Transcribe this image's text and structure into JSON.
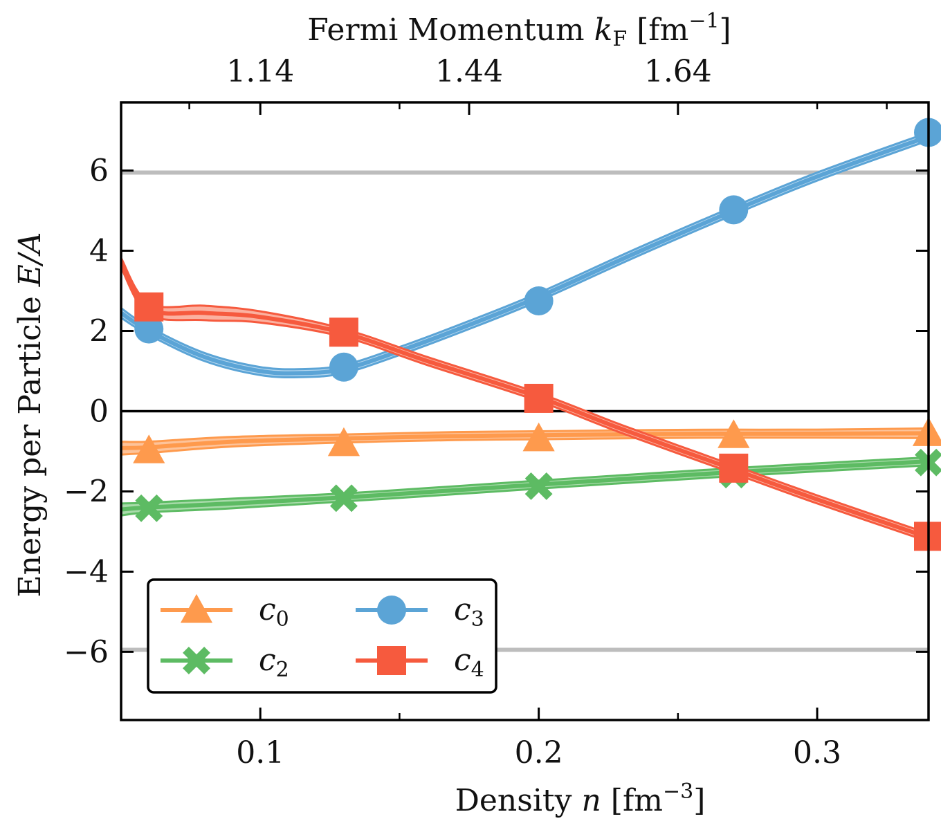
{
  "chart_data": {
    "type": "line",
    "xlabel": "Density n [fm⁻³]",
    "ylabel": "Energy per Particle E/A",
    "top_xlabel": "Fermi Momentum k_F [fm⁻¹]",
    "xlim": [
      0.05,
      0.34
    ],
    "ylim": [
      -7.7,
      7.7
    ],
    "x_ticks": [
      0.1,
      0.2,
      0.3
    ],
    "x_tick_labels": [
      "0.1",
      "0.2",
      "0.3"
    ],
    "y_ticks": [
      -6,
      -4,
      -2,
      0,
      2,
      4,
      6
    ],
    "y_tick_labels": [
      "−6",
      "−4",
      "−2",
      "0",
      "2",
      "4",
      "6"
    ],
    "top_ticks_density": [
      0.1,
      0.175,
      0.25
    ],
    "top_tick_labels": [
      "1.14",
      "1.44",
      "1.64"
    ],
    "reference_lines": [
      5.95,
      -5.95
    ],
    "zero_line": 0,
    "legend_position": "lower-left",
    "legend_columns": 2,
    "series": [
      {
        "name": "c0",
        "sub": "0",
        "color": "#fe9a4d",
        "fill": "#fdc39a",
        "marker": "triangle",
        "x": [
          0.05,
          0.06,
          0.09,
          0.13,
          0.17,
          0.2,
          0.24,
          0.27,
          0.3,
          0.34
        ],
        "y": [
          -0.92,
          -0.9,
          -0.76,
          -0.68,
          -0.62,
          -0.6,
          -0.57,
          -0.56,
          -0.56,
          -0.55
        ],
        "band": [
          0.16,
          0.14,
          0.12,
          0.1,
          0.1,
          0.1,
          0.1,
          0.1,
          0.1,
          0.12
        ],
        "markers_x": [
          0.06,
          0.13,
          0.2,
          0.27,
          0.34
        ],
        "markers_y": [
          -0.98,
          -0.8,
          -0.68,
          -0.6,
          -0.55
        ]
      },
      {
        "name": "c2",
        "sub": "2",
        "color": "#5dbb63",
        "fill": "#a8dbaa",
        "marker": "cross",
        "x": [
          0.05,
          0.06,
          0.09,
          0.13,
          0.17,
          0.2,
          0.24,
          0.27,
          0.3,
          0.34
        ],
        "y": [
          -2.45,
          -2.4,
          -2.3,
          -2.15,
          -1.97,
          -1.83,
          -1.65,
          -1.52,
          -1.4,
          -1.25
        ],
        "band": [
          0.15,
          0.12,
          0.12,
          0.1,
          0.1,
          0.1,
          0.1,
          0.1,
          0.1,
          0.1
        ],
        "markers_x": [
          0.06,
          0.13,
          0.2,
          0.27,
          0.34
        ],
        "markers_y": [
          -2.42,
          -2.17,
          -1.87,
          -1.58,
          -1.28
        ]
      },
      {
        "name": "c3",
        "sub": "3",
        "color": "#5ba4d6",
        "fill": "#b5d7ef",
        "marker": "circle",
        "x": [
          0.05,
          0.06,
          0.08,
          0.1,
          0.115,
          0.13,
          0.15,
          0.175,
          0.2,
          0.235,
          0.27,
          0.3,
          0.34
        ],
        "y": [
          2.45,
          2.0,
          1.35,
          1.0,
          0.95,
          1.05,
          1.5,
          2.15,
          2.85,
          3.95,
          5.0,
          5.85,
          6.85
        ],
        "band": [
          0.12,
          0.1,
          0.1,
          0.1,
          0.1,
          0.1,
          0.1,
          0.1,
          0.1,
          0.1,
          0.1,
          0.1,
          0.1
        ],
        "markers_x": [
          0.06,
          0.13,
          0.2,
          0.27,
          0.34
        ],
        "markers_y": [
          2.05,
          1.1,
          2.75,
          5.02,
          6.95
        ]
      },
      {
        "name": "c4",
        "sub": "4",
        "color": "#f65a3e",
        "fill": "#fbb1a0",
        "marker": "square",
        "x": [
          0.05,
          0.06,
          0.08,
          0.1,
          0.13,
          0.16,
          0.2,
          0.23,
          0.27,
          0.3,
          0.34
        ],
        "y": [
          3.7,
          2.55,
          2.45,
          2.35,
          1.95,
          1.25,
          0.35,
          -0.45,
          -1.45,
          -2.2,
          -3.15
        ],
        "band": [
          0.12,
          0.14,
          0.18,
          0.14,
          0.1,
          0.1,
          0.1,
          0.1,
          0.1,
          0.1,
          0.1
        ],
        "markers_x": [
          0.06,
          0.13,
          0.2,
          0.27,
          0.34
        ],
        "markers_y": [
          2.6,
          1.97,
          0.32,
          -1.42,
          -3.12
        ]
      }
    ]
  }
}
